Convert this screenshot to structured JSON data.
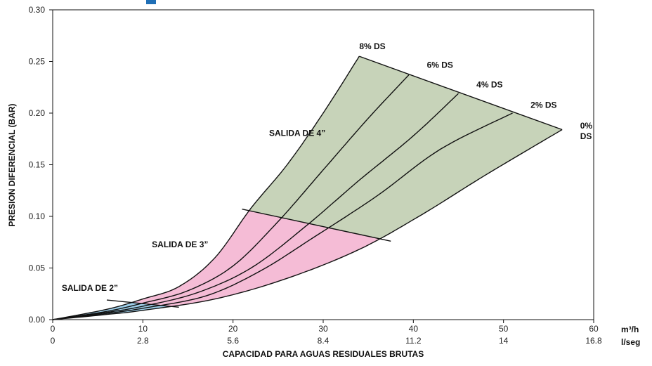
{
  "chart_data": {
    "type": "area",
    "title": "",
    "xlabel": "CAPACIDAD PARA AGUAS RESIDUALES BRUTAS",
    "ylabel": "PRESION DIFERENCIAL (BAR)",
    "xlim": [
      0,
      60
    ],
    "ylim": [
      0,
      0.3
    ],
    "x_ticks": [
      0,
      10,
      20,
      30,
      40,
      50,
      60
    ],
    "x_ticks_secondary": [
      "0",
      "2.8",
      "5.6",
      "8.4",
      "11.2",
      "14",
      "16.8"
    ],
    "x_unit_primary": "m³/h",
    "x_unit_secondary": "l/seg",
    "y_ticks": [
      "0.00",
      "0.05",
      "0.10",
      "0.15",
      "0.20",
      "0.25",
      "0.30"
    ],
    "grid": false,
    "colors": {
      "salida_4": "#c7d3b9",
      "salida_3": "#f5bcd6",
      "salida_2": "#9fd0ea",
      "line": "#111111"
    },
    "curves": [
      {
        "name": "8% DS",
        "points": [
          [
            0,
            0
          ],
          [
            6,
            0.01
          ],
          [
            10,
            0.02
          ],
          [
            14,
            0.032
          ],
          [
            18,
            0.06
          ],
          [
            22,
            0.108
          ],
          [
            26,
            0.15
          ],
          [
            30,
            0.2
          ],
          [
            34,
            0.255
          ]
        ]
      },
      {
        "name": "6% DS",
        "points": [
          [
            0,
            0
          ],
          [
            6,
            0.008
          ],
          [
            10,
            0.016
          ],
          [
            15,
            0.028
          ],
          [
            20,
            0.052
          ],
          [
            25,
            0.095
          ],
          [
            30,
            0.145
          ],
          [
            35,
            0.195
          ],
          [
            39.5,
            0.237
          ]
        ]
      },
      {
        "name": "4% DS",
        "points": [
          [
            0,
            0
          ],
          [
            6,
            0.007
          ],
          [
            10,
            0.013
          ],
          [
            16,
            0.026
          ],
          [
            22,
            0.05
          ],
          [
            28,
            0.09
          ],
          [
            34,
            0.135
          ],
          [
            40,
            0.178
          ],
          [
            45,
            0.219
          ]
        ]
      },
      {
        "name": "2% DS",
        "points": [
          [
            0,
            0
          ],
          [
            6,
            0.006
          ],
          [
            10,
            0.011
          ],
          [
            17,
            0.023
          ],
          [
            23,
            0.047
          ],
          [
            29,
            0.08
          ],
          [
            36,
            0.12
          ],
          [
            43,
            0.165
          ],
          [
            51,
            0.2
          ]
        ]
      },
      {
        "name": "0% DS",
        "points": [
          [
            0,
            0
          ],
          [
            6,
            0.005
          ],
          [
            10,
            0.009
          ],
          [
            18,
            0.02
          ],
          [
            26,
            0.04
          ],
          [
            34,
            0.068
          ],
          [
            41,
            0.102
          ],
          [
            48,
            0.14
          ],
          [
            56.5,
            0.184
          ]
        ]
      }
    ],
    "boundary_curves": [
      "8% DS",
      "6% DS",
      "4% DS",
      "2% DS",
      "0% DS"
    ],
    "boundaries": {
      "top": [
        [
          34,
          0.255
        ],
        [
          56.5,
          0.184
        ]
      ],
      "salida_4_3": [
        [
          21,
          0.107
        ],
        [
          37.5,
          0.076
        ]
      ],
      "salida_3_2": [
        [
          6,
          0.019
        ],
        [
          14,
          0.012
        ]
      ]
    },
    "annotations": [
      {
        "text": "8% DS",
        "x": 34,
        "y": 0.262
      },
      {
        "text": "6% DS",
        "x": 41.5,
        "y": 0.244
      },
      {
        "text": "4% DS",
        "x": 47,
        "y": 0.225
      },
      {
        "text": "2% DS",
        "x": 53,
        "y": 0.205
      },
      {
        "text": "0%",
        "x": 58.5,
        "y": 0.185
      },
      {
        "text": "DS",
        "x": 58.5,
        "y": 0.175
      },
      {
        "text": "SALIDA DE 4”",
        "x": 24,
        "y": 0.178
      },
      {
        "text": "SALIDA DE 3”",
        "x": 11,
        "y": 0.07
      },
      {
        "text": "SALIDA DE 2”",
        "x": 1,
        "y": 0.028
      }
    ]
  }
}
